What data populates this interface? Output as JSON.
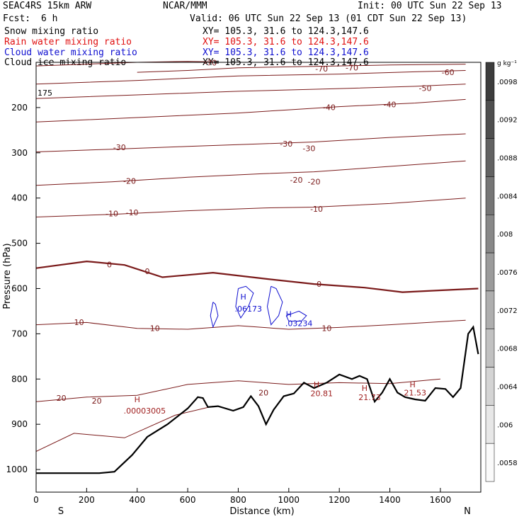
{
  "header": {
    "model": "SEAC4RS 15km ARW",
    "org": "NCAR/MMM",
    "init": "Init: 00 UTC Sun 22 Sep 13",
    "fcst_label": "Fcst:",
    "fcst_value": "6 h",
    "valid": "Valid: 06 UTC Sun 22 Sep 13 (01 CDT Sun 22 Sep 13)",
    "fields": [
      {
        "name": "Snow mixing ratio",
        "xy": "XY= 105.3, 31.6 to 124.3,147.6",
        "color": "#000000"
      },
      {
        "name": "Rain water mixing ratio",
        "xy": "XY= 105.3, 31.6 to 124.3,147.6",
        "color": "#e01010"
      },
      {
        "name": "Cloud water mixing ratio",
        "xy": "XY= 105.3, 31.6 to 124.3,147.6",
        "color": "#1010d0"
      },
      {
        "name": "Cloud ice mixing ratio",
        "xy": "XY= 105.3, 31.6 to 124.3,147.6",
        "color": "#000000"
      }
    ]
  },
  "chart_data": {
    "type": "cross-section",
    "xlabel": "Distance (km)",
    "ylabel": "Pressure (hPa)",
    "xlim": [
      0,
      1760
    ],
    "ylim": [
      1050,
      100
    ],
    "x_ticks": [
      0,
      200,
      400,
      600,
      800,
      1000,
      1200,
      1400,
      1600
    ],
    "y_ticks": [
      200,
      300,
      400,
      500,
      600,
      700,
      800,
      900,
      1000
    ],
    "y_axis_top_label": "175",
    "end_labels": {
      "left": "S",
      "right": "N"
    },
    "colorbar": {
      "unit": "g kg⁻¹",
      "ticks": [
        ".0098",
        ".0092",
        ".0088",
        ".0084",
        ".008",
        ".0076",
        ".0072",
        ".0068",
        ".0064",
        ".006",
        ".0058"
      ]
    },
    "temperature_contours": [
      {
        "label": "-70",
        "points": [
          [
            0,
            108
          ],
          [
            200,
            104
          ],
          [
            400,
            100
          ],
          [
            600,
            98
          ],
          [
            700,
            99
          ]
        ]
      },
      {
        "label": "-70",
        "points": [
          [
            400,
            122
          ],
          [
            600,
            118
          ],
          [
            800,
            112
          ],
          [
            1000,
            110
          ],
          [
            1200,
            108
          ],
          [
            1400,
            106
          ],
          [
            1700,
            104
          ]
        ]
      },
      {
        "label": "-60",
        "points": [
          [
            0,
            148
          ],
          [
            400,
            140
          ],
          [
            800,
            130
          ],
          [
            1200,
            126
          ],
          [
            1500,
            121
          ],
          [
            1700,
            118
          ]
        ]
      },
      {
        "label": "-50",
        "points": [
          [
            0,
            180
          ],
          [
            400,
            172
          ],
          [
            800,
            164
          ],
          [
            1200,
            158
          ],
          [
            1500,
            153
          ],
          [
            1700,
            148
          ]
        ]
      },
      {
        "label": "-40",
        "points": [
          [
            0,
            232
          ],
          [
            400,
            222
          ],
          [
            800,
            212
          ],
          [
            1000,
            205
          ],
          [
            1200,
            198
          ],
          [
            1500,
            190
          ],
          [
            1700,
            182
          ]
        ]
      },
      {
        "label": "-30",
        "points": [
          [
            0,
            298
          ],
          [
            300,
            292
          ],
          [
            600,
            286
          ],
          [
            900,
            280
          ],
          [
            1100,
            276
          ],
          [
            1400,
            266
          ],
          [
            1700,
            258
          ]
        ]
      },
      {
        "label": "-20",
        "points": [
          [
            0,
            372
          ],
          [
            300,
            364
          ],
          [
            600,
            354
          ],
          [
            900,
            346
          ],
          [
            1100,
            342
          ],
          [
            1400,
            330
          ],
          [
            1700,
            318
          ]
        ]
      },
      {
        "label": "-10",
        "points": [
          [
            0,
            442
          ],
          [
            300,
            436
          ],
          [
            600,
            428
          ],
          [
            900,
            422
          ],
          [
            1100,
            420
          ],
          [
            1400,
            412
          ],
          [
            1700,
            400
          ]
        ]
      },
      {
        "label": "0",
        "thick": true,
        "points": [
          [
            0,
            555
          ],
          [
            200,
            540
          ],
          [
            350,
            548
          ],
          [
            500,
            575
          ],
          [
            700,
            565
          ],
          [
            900,
            578
          ],
          [
            1100,
            590
          ],
          [
            1300,
            598
          ],
          [
            1450,
            608
          ],
          [
            1600,
            604
          ],
          [
            1750,
            600
          ]
        ]
      },
      {
        "label": "10",
        "points": [
          [
            0,
            680
          ],
          [
            200,
            675
          ],
          [
            400,
            688
          ],
          [
            600,
            690
          ],
          [
            800,
            682
          ],
          [
            1000,
            690
          ],
          [
            1200,
            686
          ],
          [
            1400,
            680
          ],
          [
            1700,
            670
          ]
        ]
      },
      {
        "label": "20",
        "points": [
          [
            0,
            850
          ],
          [
            200,
            840
          ],
          [
            400,
            836
          ],
          [
            600,
            812
          ],
          [
            800,
            804
          ],
          [
            1000,
            812
          ],
          [
            1200,
            808
          ],
          [
            1400,
            810
          ],
          [
            1600,
            800
          ]
        ]
      },
      {
        "label": "",
        "points": [
          [
            0,
            960
          ],
          [
            150,
            920
          ],
          [
            350,
            930
          ],
          [
            550,
            880
          ],
          [
            700,
            860
          ]
        ]
      }
    ],
    "contour_labels": [
      {
        "text": "-70",
        "x": 690,
        "p": 101
      },
      {
        "text": "-70",
        "x": 1130,
        "p": 114
      },
      {
        "text": "-70",
        "x": 1250,
        "p": 112
      },
      {
        "text": "-60",
        "x": 1630,
        "p": 122
      },
      {
        "text": "-50",
        "x": 1540,
        "p": 157
      },
      {
        "text": "-40",
        "x": 1160,
        "p": 199
      },
      {
        "text": "-40",
        "x": 1400,
        "p": 193
      },
      {
        "text": "-30",
        "x": 330,
        "p": 288
      },
      {
        "text": "-30",
        "x": 990,
        "p": 280
      },
      {
        "text": "-30",
        "x": 1080,
        "p": 290
      },
      {
        "text": "-20",
        "x": 370,
        "p": 362
      },
      {
        "text": "-20",
        "x": 1030,
        "p": 360
      },
      {
        "text": "-20",
        "x": 1100,
        "p": 364
      },
      {
        "text": "-10",
        "x": 300,
        "p": 434
      },
      {
        "text": "-10",
        "x": 380,
        "p": 432
      },
      {
        "text": "-10",
        "x": 1110,
        "p": 424
      },
      {
        "text": "0",
        "x": 290,
        "p": 547
      },
      {
        "text": "0",
        "x": 440,
        "p": 562
      },
      {
        "text": "0",
        "x": 1120,
        "p": 590
      },
      {
        "text": "10",
        "x": 170,
        "p": 674
      },
      {
        "text": "10",
        "x": 470,
        "p": 688
      },
      {
        "text": "10",
        "x": 1150,
        "p": 688
      },
      {
        "text": "20",
        "x": 100,
        "p": 842
      },
      {
        "text": "20",
        "x": 240,
        "p": 848
      },
      {
        "text": "20",
        "x": 900,
        "p": 830
      }
    ],
    "terrain_surface": [
      [
        0,
        1008
      ],
      [
        250,
        1008
      ],
      [
        310,
        1005
      ],
      [
        380,
        968
      ],
      [
        440,
        928
      ],
      [
        520,
        900
      ],
      [
        600,
        865
      ],
      [
        640,
        840
      ],
      [
        660,
        842
      ],
      [
        680,
        862
      ],
      [
        720,
        860
      ],
      [
        780,
        870
      ],
      [
        820,
        862
      ],
      [
        850,
        838
      ],
      [
        880,
        860
      ],
      [
        910,
        900
      ],
      [
        940,
        868
      ],
      [
        980,
        838
      ],
      [
        1020,
        832
      ],
      [
        1060,
        808
      ],
      [
        1100,
        820
      ],
      [
        1150,
        808
      ],
      [
        1200,
        790
      ],
      [
        1250,
        800
      ],
      [
        1280,
        793
      ],
      [
        1310,
        800
      ],
      [
        1340,
        850
      ],
      [
        1370,
        830
      ],
      [
        1400,
        800
      ],
      [
        1430,
        830
      ],
      [
        1460,
        840
      ],
      [
        1500,
        845
      ],
      [
        1540,
        848
      ],
      [
        1580,
        820
      ],
      [
        1620,
        822
      ],
      [
        1650,
        840
      ],
      [
        1680,
        820
      ],
      [
        1710,
        700
      ],
      [
        1730,
        685
      ],
      [
        1750,
        745
      ]
    ],
    "cloud_water_contours": [
      [
        [
          700,
          630
        ],
        [
          690,
          660
        ],
        [
          700,
          685
        ],
        [
          720,
          660
        ],
        [
          710,
          635
        ],
        [
          700,
          630
        ]
      ],
      [
        [
          800,
          600
        ],
        [
          790,
          640
        ],
        [
          810,
          665
        ],
        [
          840,
          640
        ],
        [
          860,
          610
        ],
        [
          830,
          595
        ],
        [
          800,
          600
        ]
      ],
      [
        [
          930,
          595
        ],
        [
          915,
          640
        ],
        [
          930,
          680
        ],
        [
          960,
          660
        ],
        [
          975,
          630
        ],
        [
          950,
          600
        ],
        [
          930,
          595
        ]
      ],
      [
        [
          990,
          660
        ],
        [
          1040,
          650
        ],
        [
          1070,
          660
        ],
        [
          1050,
          672
        ],
        [
          1000,
          672
        ],
        [
          990,
          660
        ]
      ]
    ],
    "extrema_labels": [
      {
        "text": "H",
        "x": 820,
        "p": 618,
        "color": "#1010d0"
      },
      {
        "text": ".06173",
        "x": 840,
        "p": 645,
        "color": "#1010d0"
      },
      {
        "text": "H",
        "x": 1000,
        "p": 656,
        "color": "#1010d0"
      },
      {
        "text": ".03234",
        "x": 1040,
        "p": 677,
        "color": "#1010d0"
      },
      {
        "text": "H",
        "x": 400,
        "p": 845,
        "color": "#a02020"
      },
      {
        "text": ".00003005",
        "x": 430,
        "p": 870,
        "color": "#a02020"
      },
      {
        "text": "H",
        "x": 1110,
        "p": 812,
        "color": "#a02020"
      },
      {
        "text": "20.81",
        "x": 1130,
        "p": 832,
        "color": "#a02020"
      },
      {
        "text": "H",
        "x": 1300,
        "p": 820,
        "color": "#a02020"
      },
      {
        "text": "21.73",
        "x": 1320,
        "p": 840,
        "color": "#a02020"
      },
      {
        "text": "H",
        "x": 1490,
        "p": 812,
        "color": "#a02020"
      },
      {
        "text": "21.53",
        "x": 1500,
        "p": 830,
        "color": "#a02020"
      }
    ]
  }
}
